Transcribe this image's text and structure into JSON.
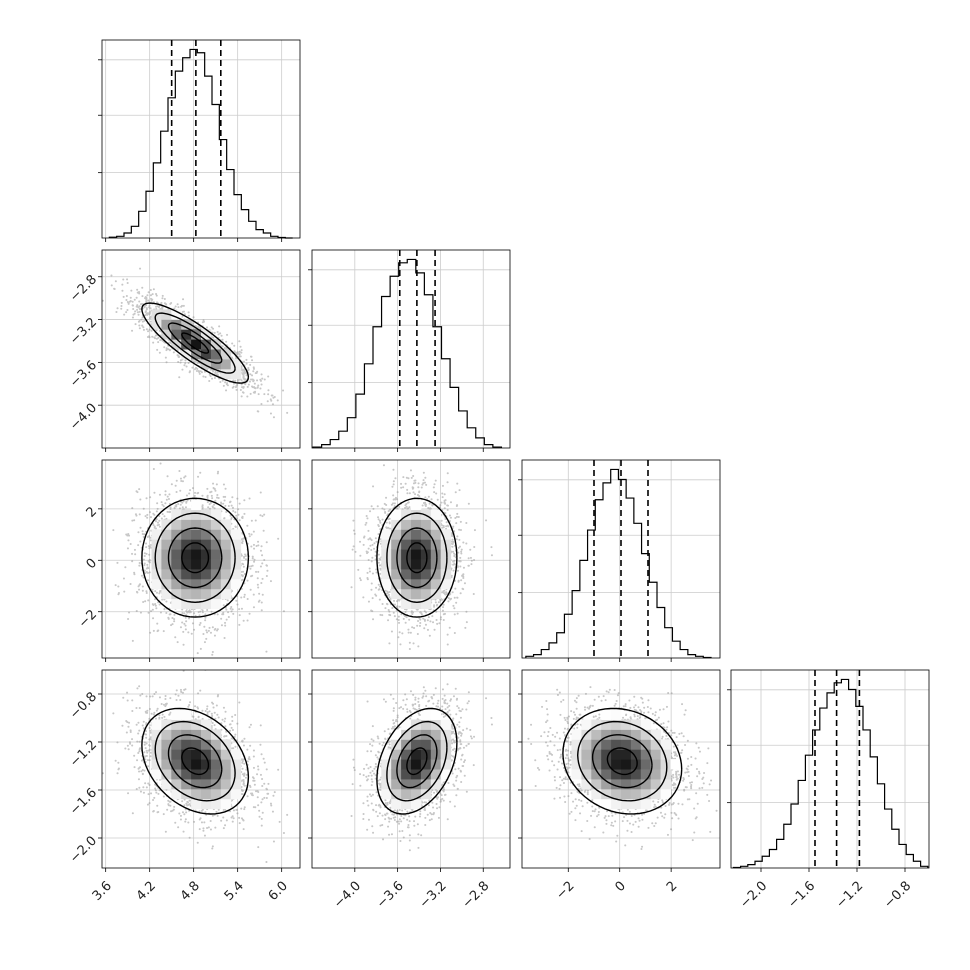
{
  "chart_data": {
    "type": "corner",
    "parameters": [
      {
        "range": [
          3.55,
          6.25
        ],
        "ticks": [
          3.6,
          4.2,
          4.8,
          5.4,
          6.0
        ],
        "tick_labels": [
          "3.6",
          "4.2",
          "4.8",
          "5.4",
          "6.0"
        ],
        "quantiles": [
          4.5,
          4.83,
          5.17
        ],
        "hist_centers": [
          3.7,
          3.8,
          3.9,
          4.0,
          4.1,
          4.2,
          4.3,
          4.4,
          4.5,
          4.6,
          4.7,
          4.8,
          4.9,
          5.0,
          5.1,
          5.2,
          5.3,
          5.4,
          5.5,
          5.6,
          5.7,
          5.8,
          5.9,
          6.0,
          6.1
        ],
        "hist_counts": [
          0.5,
          1,
          3,
          7,
          16,
          28,
          45,
          64,
          84,
          100,
          108,
          113,
          111,
          97,
          80,
          59,
          41,
          26,
          17,
          10,
          5,
          3,
          1,
          0.3,
          0
        ]
      },
      {
        "range": [
          -4.4,
          -2.55
        ],
        "ticks": [
          -4.0,
          -3.6,
          -3.2,
          -2.8
        ],
        "tick_labels": [
          "−4.0",
          "−3.6",
          "−3.2",
          "−2.8"
        ],
        "quantiles": [
          -3.58,
          -3.42,
          -3.25
        ],
        "hist_centers": [
          -4.35,
          -4.27,
          -4.19,
          -4.11,
          -4.03,
          -3.95,
          -3.87,
          -3.79,
          -3.71,
          -3.63,
          -3.55,
          -3.47,
          -3.39,
          -3.31,
          -3.23,
          -3.15,
          -3.07,
          -2.99,
          -2.91,
          -2.83,
          -2.75,
          -2.67
        ],
        "hist_counts": [
          0.5,
          2,
          5,
          10,
          18,
          32,
          50,
          72,
          90,
          102,
          110,
          112,
          104,
          91,
          72,
          53,
          36,
          22,
          12,
          6,
          2,
          0.5
        ]
      },
      {
        "range": [
          -3.8,
          3.9
        ],
        "ticks": [
          -2,
          0,
          2
        ],
        "tick_labels": [
          "−2",
          "0",
          "2"
        ],
        "quantiles": [
          -1.0,
          0.05,
          1.1
        ],
        "hist_centers": [
          -3.5,
          -3.2,
          -2.9,
          -2.6,
          -2.3,
          -2.0,
          -1.7,
          -1.4,
          -1.1,
          -0.8,
          -0.5,
          -0.2,
          0.1,
          0.4,
          0.7,
          1.0,
          1.3,
          1.6,
          1.9,
          2.2,
          2.5,
          2.8,
          3.1,
          3.4
        ],
        "hist_counts": [
          1,
          2,
          5,
          9,
          15,
          26,
          40,
          58,
          76,
          94,
          104,
          112,
          106,
          95,
          80,
          62,
          45,
          30,
          18,
          10,
          5,
          2,
          1,
          0.3
        ]
      },
      {
        "range": [
          -2.25,
          -0.6
        ],
        "ticks": [
          -2.0,
          -1.6,
          -1.2,
          -0.8
        ],
        "tick_labels": [
          "−2.0",
          "−1.6",
          "−1.2",
          "−0.8"
        ],
        "quantiles": [
          -1.55,
          -1.37,
          -1.18
        ],
        "hist_centers": [
          -2.2,
          -2.14,
          -2.08,
          -2.02,
          -1.96,
          -1.9,
          -1.84,
          -1.78,
          -1.72,
          -1.66,
          -1.6,
          -1.54,
          -1.48,
          -1.42,
          -1.36,
          -1.3,
          -1.24,
          -1.18,
          -1.12,
          -1.06,
          -1.0,
          -0.94,
          -0.88,
          -0.82,
          -0.76,
          -0.7,
          -0.64
        ],
        "hist_counts": [
          0.3,
          1,
          2,
          4,
          7,
          11,
          17,
          26,
          38,
          52,
          67,
          82,
          95,
          104,
          110,
          112,
          106,
          96,
          82,
          66,
          50,
          35,
          23,
          14,
          8,
          4,
          1
        ]
      }
    ],
    "pairs": [
      {
        "row": 1,
        "col": 0,
        "center": [
          4.82,
          -3.42
        ],
        "sx": 0.33,
        "sy": 0.17,
        "rho": -0.85
      },
      {
        "row": 2,
        "col": 0,
        "center": [
          4.82,
          0.1
        ],
        "sx": 0.33,
        "sy": 1.05,
        "rho": 0.0
      },
      {
        "row": 2,
        "col": 1,
        "center": [
          -3.42,
          0.1
        ],
        "sx": 0.17,
        "sy": 1.05,
        "rho": 0.0
      },
      {
        "row": 3,
        "col": 0,
        "center": [
          4.82,
          -1.36
        ],
        "sx": 0.33,
        "sy": 0.2,
        "rho": -0.3
      },
      {
        "row": 3,
        "col": 1,
        "center": [
          -3.42,
          -1.36
        ],
        "sx": 0.17,
        "sy": 0.2,
        "rho": 0.35
      },
      {
        "row": 3,
        "col": 2,
        "center": [
          0.1,
          -1.36
        ],
        "sx": 1.05,
        "sy": 0.2,
        "rho": -0.15
      }
    ],
    "grid": true
  }
}
